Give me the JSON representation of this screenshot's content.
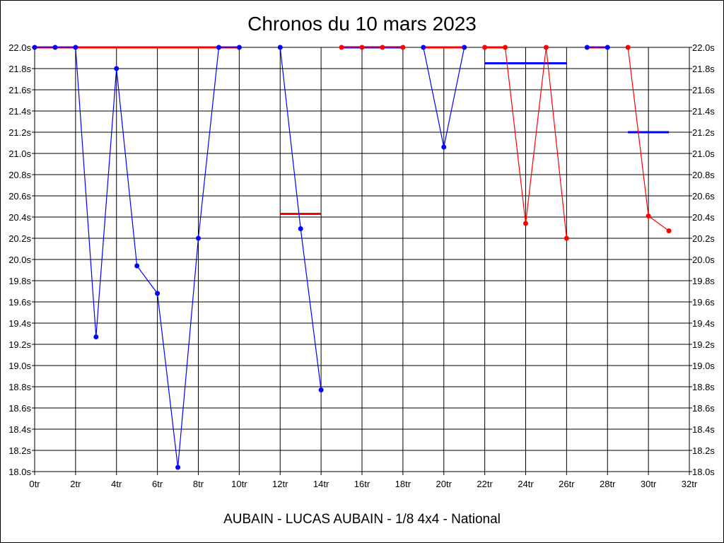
{
  "chart_data": {
    "type": "line",
    "title": "Chronos du 10 mars 2023",
    "footer": "AUBAIN - LUCAS AUBAIN - 1/8 4x4 - National",
    "xlabel": "",
    "ylabel": "",
    "xlim": [
      0,
      32
    ],
    "ylim": [
      18.0,
      22.0
    ],
    "x_tick_step": 2,
    "y_tick_step": 0.2,
    "x_tick_suffix": "tr",
    "y_tick_suffix": "s",
    "grid": true,
    "colors": {
      "blue": "#0000ff",
      "red": "#ff0000",
      "grid": "#000000"
    },
    "series": [
      {
        "name": "group-1",
        "color": "blue",
        "points": [
          [
            0,
            22.0
          ],
          [
            1,
            22.0
          ],
          [
            2,
            22.0
          ],
          [
            3,
            19.27
          ],
          [
            4,
            21.8
          ],
          [
            5,
            19.94
          ],
          [
            6,
            19.68
          ],
          [
            7,
            18.04
          ],
          [
            8,
            20.2
          ],
          [
            9,
            22.0
          ],
          [
            10,
            22.0
          ]
        ]
      },
      {
        "name": "group-2",
        "color": "blue",
        "points": [
          [
            12,
            22.0
          ],
          [
            13,
            20.29
          ],
          [
            14,
            18.77
          ]
        ]
      },
      {
        "name": "group-3",
        "color": "red",
        "points": [
          [
            15,
            22.0
          ],
          [
            16,
            22.0
          ],
          [
            17,
            22.0
          ],
          [
            18,
            22.0
          ]
        ]
      },
      {
        "name": "group-4",
        "color": "blue",
        "points": [
          [
            19,
            22.0
          ],
          [
            20,
            21.06
          ],
          [
            21,
            22.0
          ]
        ]
      },
      {
        "name": "group-5",
        "color": "red",
        "points": [
          [
            22,
            22.0
          ],
          [
            23,
            22.0
          ],
          [
            24,
            20.34
          ],
          [
            25,
            22.0
          ],
          [
            26,
            20.2
          ]
        ]
      },
      {
        "name": "group-6",
        "color": "blue",
        "points": [
          [
            27,
            22.0
          ],
          [
            28,
            22.0
          ]
        ]
      },
      {
        "name": "group-7",
        "color": "red",
        "points": [
          [
            29,
            22.0
          ],
          [
            30,
            20.41
          ],
          [
            31,
            20.27
          ]
        ]
      }
    ],
    "reference_lines": [
      {
        "from": 0,
        "to": 10,
        "value": 22.0,
        "color": "red"
      },
      {
        "from": 12,
        "to": 14,
        "value": 20.43,
        "color": "red"
      },
      {
        "from": 15,
        "to": 18,
        "value": 22.0,
        "color": "blue"
      },
      {
        "from": 19,
        "to": 21,
        "value": 22.0,
        "color": "red"
      },
      {
        "from": 22,
        "to": 23,
        "value": 22.0,
        "color": "red"
      },
      {
        "from": 22,
        "to": 26,
        "value": 21.85,
        "color": "blue"
      },
      {
        "from": 27,
        "to": 28,
        "value": 22.0,
        "color": "red"
      },
      {
        "from": 29,
        "to": 31,
        "value": 21.2,
        "color": "blue"
      }
    ]
  }
}
